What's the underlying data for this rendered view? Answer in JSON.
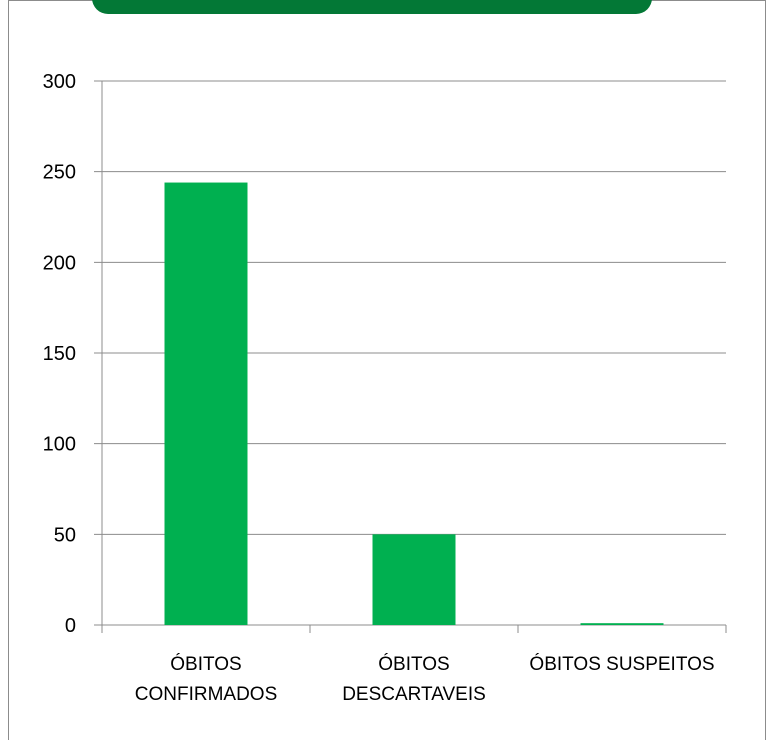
{
  "colors": {
    "banner": "#037836",
    "bar": "#00b050",
    "grid": "#8c8c8c",
    "axis": "#8c8c8c",
    "text": "#000000"
  },
  "chart_data": {
    "type": "bar",
    "categories": [
      [
        "ÓBITOS",
        "CONFIRMADOS"
      ],
      [
        "ÓBITOS",
        "DESCARTAVEIS"
      ],
      [
        "ÓBITOS SUSPEITOS"
      ]
    ],
    "values": [
      244,
      50,
      1
    ],
    "ylim": [
      0,
      300
    ],
    "yticks": [
      0,
      50,
      100,
      150,
      200,
      250,
      300
    ],
    "grid": true,
    "legend": false
  }
}
